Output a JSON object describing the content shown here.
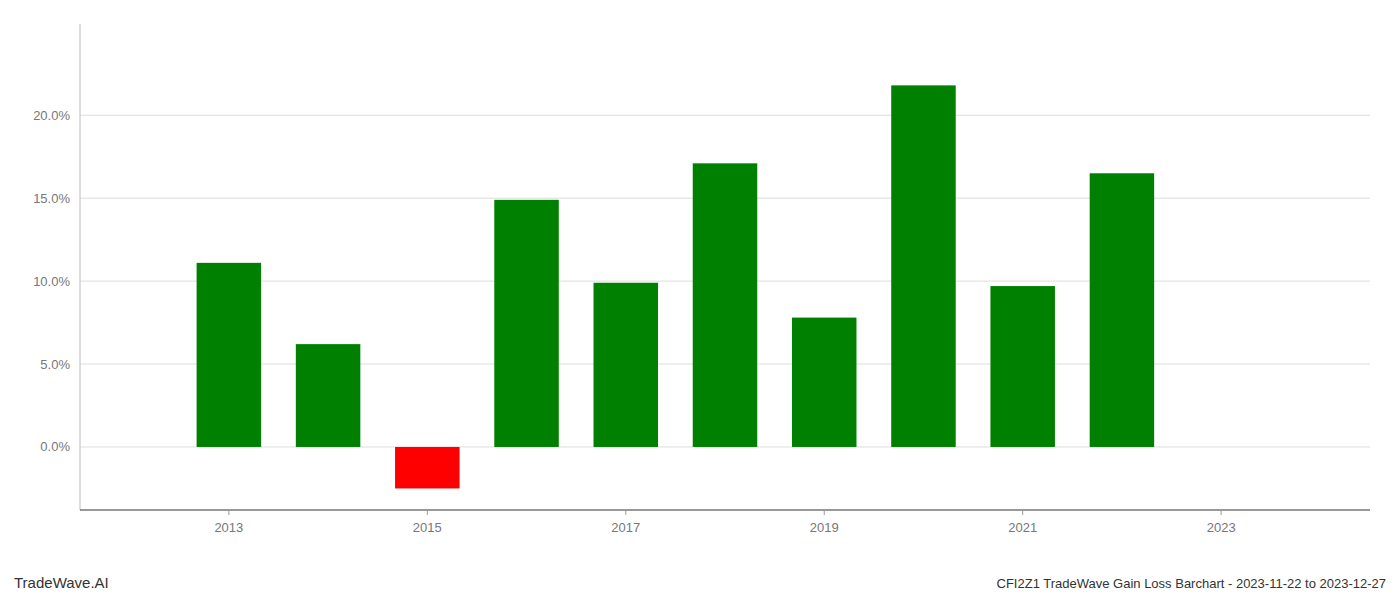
{
  "chart_data": {
    "type": "bar",
    "title": "CFI2Z1 TradeWave Gain Loss Barchart - 2023-11-22 to 2023-12-27",
    "annotations": [
      "TradeWave.AI"
    ],
    "x": [
      2013,
      2014,
      2015,
      2016,
      2017,
      2018,
      2019,
      2020,
      2021,
      2022
    ],
    "values": [
      0.111,
      0.062,
      -0.025,
      0.149,
      0.099,
      0.171,
      0.078,
      0.218,
      0.097,
      0.165
    ],
    "colors": [
      "#008000",
      "#008000",
      "#ff0000",
      "#008000",
      "#008000",
      "#008000",
      "#008000",
      "#008000",
      "#008000",
      "#008000"
    ],
    "xlim": [
      2011.5,
      2024.5
    ],
    "xticks": [
      2013,
      2015,
      2017,
      2019,
      2021,
      2023
    ],
    "ylim": [
      -0.038,
      0.255
    ],
    "yticks": [
      {
        "value": 0.0,
        "label": "0.0%"
      },
      {
        "value": 0.05,
        "label": "5.0%"
      },
      {
        "value": 0.1,
        "label": "10.0%"
      },
      {
        "value": 0.15,
        "label": "15.0%"
      },
      {
        "value": 0.2,
        "label": "20.0%"
      }
    ],
    "grid": true
  }
}
